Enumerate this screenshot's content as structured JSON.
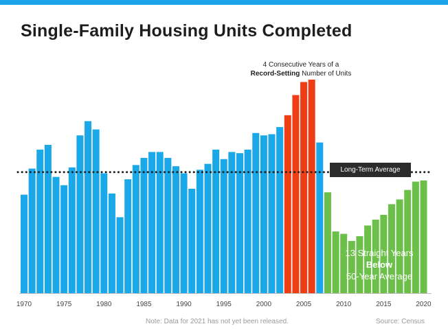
{
  "header": {
    "title": "Single-Family Housing Units Completed"
  },
  "annotations": {
    "callout_line1": "4 Consecutive Years of a",
    "callout_bold": "Record-Setting",
    "callout_rest": " Number of Units",
    "average_label": "Long-Term Average",
    "below_line1": "13 Straight Years",
    "below_line2": "Below",
    "below_line3": "50-Year Average"
  },
  "footer": {
    "note": "Note: Data for 2021 has not yet been released.",
    "source": "Source: Census"
  },
  "colors": {
    "accent_bar": "#1aa3e8",
    "normal": "#1aa8e8",
    "record": "#ef3e16",
    "below": "#6cc04a",
    "avg_line": "#222222"
  },
  "chart_data": {
    "type": "bar",
    "title": "Single-Family Housing Units Completed",
    "xlabel": "",
    "ylabel": "",
    "ylim": [
      0,
      1800
    ],
    "grid": false,
    "x_tick_labels": [
      "1970",
      "1975",
      "1980",
      "1985",
      "1990",
      "1995",
      "2000",
      "2005",
      "2010",
      "2015",
      "2020"
    ],
    "categories": [
      1970,
      1971,
      1972,
      1973,
      1974,
      1975,
      1976,
      1977,
      1978,
      1979,
      1980,
      1981,
      1982,
      1983,
      1984,
      1985,
      1986,
      1987,
      1988,
      1989,
      1990,
      1991,
      1992,
      1993,
      1994,
      1995,
      1996,
      1997,
      1998,
      1999,
      2000,
      2001,
      2002,
      2003,
      2004,
      2005,
      2006,
      2007,
      2008,
      2009,
      2010,
      2011,
      2012,
      2013,
      2014,
      2015,
      2016,
      2017,
      2018,
      2019,
      2020
    ],
    "values": [
      830,
      1050,
      1210,
      1250,
      980,
      910,
      1060,
      1330,
      1450,
      1380,
      1010,
      840,
      640,
      960,
      1080,
      1140,
      1190,
      1190,
      1140,
      1070,
      1010,
      880,
      1040,
      1090,
      1210,
      1130,
      1190,
      1180,
      1210,
      1350,
      1330,
      1340,
      1400,
      1500,
      1670,
      1780,
      1800,
      1270,
      850,
      520,
      500,
      440,
      480,
      570,
      620,
      660,
      750,
      790,
      870,
      940,
      950
    ],
    "series_groups": {
      "normal": [
        1970,
        2002
      ],
      "record": [
        2003,
        2006
      ],
      "post_peak_normal": [
        2007,
        2007
      ],
      "below": [
        2008,
        2020
      ]
    },
    "long_term_average": 1020
  }
}
